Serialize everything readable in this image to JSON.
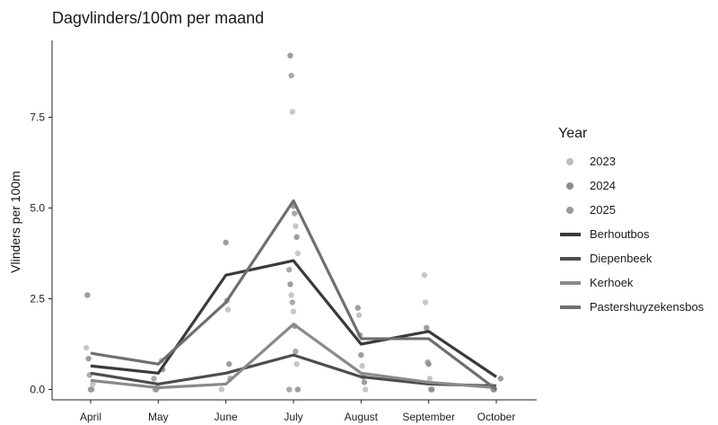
{
  "chart_data": {
    "type": "line",
    "title": "Dagvlinders/100m per maand",
    "xlabel": "",
    "ylabel": "Vlinders per 100m",
    "categories": [
      "April",
      "May",
      "June",
      "July",
      "August",
      "September",
      "October"
    ],
    "y_ticks": [
      "0.0",
      "2.5",
      "5.0",
      "7.5"
    ],
    "ylim": [
      0,
      9.5
    ],
    "grid": false,
    "legend_position": "right",
    "legend_title": "Year",
    "point_legend": [
      {
        "name": "2023",
        "color": "#bdbdbd"
      },
      {
        "name": "2024",
        "color": "#8c8c8c"
      },
      {
        "name": "2025",
        "color": "#9a9a9a"
      }
    ],
    "series": [
      {
        "name": "Berhoutbos",
        "color": "#3a3a3a",
        "values": [
          0.65,
          0.45,
          3.15,
          3.55,
          1.25,
          1.6,
          0.35
        ]
      },
      {
        "name": "Diepenbeek",
        "color": "#4d4d4d",
        "values": [
          0.45,
          0.15,
          0.45,
          0.95,
          0.35,
          0.15,
          0.1
        ]
      },
      {
        "name": "Kerhoek",
        "color": "#8a8a8a",
        "values": [
          0.25,
          0.05,
          0.15,
          1.8,
          0.45,
          0.2,
          0.05
        ]
      },
      {
        "name": "Pastershuyzekensbos",
        "color": "#6f6f6f",
        "values": [
          1.0,
          0.7,
          2.4,
          5.2,
          1.4,
          1.4,
          0.0
        ]
      }
    ],
    "points": [
      {
        "x": "April",
        "y": 1.15,
        "year": "2023"
      },
      {
        "x": "April",
        "y": 2.6,
        "year": "2024"
      },
      {
        "x": "April",
        "y": 0.85,
        "year": "2024"
      },
      {
        "x": "April",
        "y": 0.4,
        "year": "2025"
      },
      {
        "x": "April",
        "y": 0.0,
        "year": "2024"
      },
      {
        "x": "April",
        "y": 0.0,
        "year": "2025"
      },
      {
        "x": "April",
        "y": 0.15,
        "year": "2023"
      },
      {
        "x": "May",
        "y": 0.8,
        "year": "2023"
      },
      {
        "x": "May",
        "y": 0.55,
        "year": "2024"
      },
      {
        "x": "May",
        "y": 0.3,
        "year": "2025"
      },
      {
        "x": "May",
        "y": 0.0,
        "year": "2023"
      },
      {
        "x": "May",
        "y": 0.0,
        "year": "2024"
      },
      {
        "x": "May",
        "y": 0.05,
        "year": "2025"
      },
      {
        "x": "June",
        "y": 4.05,
        "year": "2024"
      },
      {
        "x": "June",
        "y": 2.45,
        "year": "2025"
      },
      {
        "x": "June",
        "y": 2.2,
        "year": "2023"
      },
      {
        "x": "June",
        "y": 0.7,
        "year": "2024"
      },
      {
        "x": "June",
        "y": 0.3,
        "year": "2025"
      },
      {
        "x": "June",
        "y": 0.0,
        "year": "2023"
      },
      {
        "x": "July",
        "y": 9.2,
        "year": "2024"
      },
      {
        "x": "July",
        "y": 8.65,
        "year": "2025"
      },
      {
        "x": "July",
        "y": 7.65,
        "year": "2023"
      },
      {
        "x": "July",
        "y": 5.05,
        "year": "2024"
      },
      {
        "x": "July",
        "y": 4.85,
        "year": "2025"
      },
      {
        "x": "July",
        "y": 4.5,
        "year": "2023"
      },
      {
        "x": "July",
        "y": 4.2,
        "year": "2024"
      },
      {
        "x": "July",
        "y": 3.75,
        "year": "2023"
      },
      {
        "x": "July",
        "y": 3.3,
        "year": "2025"
      },
      {
        "x": "July",
        "y": 2.9,
        "year": "2024"
      },
      {
        "x": "July",
        "y": 2.6,
        "year": "2023"
      },
      {
        "x": "July",
        "y": 2.4,
        "year": "2025"
      },
      {
        "x": "July",
        "y": 2.15,
        "year": "2023"
      },
      {
        "x": "July",
        "y": 1.75,
        "year": "2024"
      },
      {
        "x": "July",
        "y": 1.05,
        "year": "2025"
      },
      {
        "x": "July",
        "y": 0.7,
        "year": "2023"
      },
      {
        "x": "July",
        "y": 0.0,
        "year": "2024"
      },
      {
        "x": "July",
        "y": 0.0,
        "year": "2025"
      },
      {
        "x": "August",
        "y": 2.25,
        "year": "2024"
      },
      {
        "x": "August",
        "y": 2.05,
        "year": "2023"
      },
      {
        "x": "August",
        "y": 1.5,
        "year": "2025"
      },
      {
        "x": "August",
        "y": 0.95,
        "year": "2024"
      },
      {
        "x": "August",
        "y": 0.65,
        "year": "2023"
      },
      {
        "x": "August",
        "y": 0.35,
        "year": "2025"
      },
      {
        "x": "August",
        "y": 0.2,
        "year": "2024"
      },
      {
        "x": "August",
        "y": 0.0,
        "year": "2023"
      },
      {
        "x": "September",
        "y": 3.15,
        "year": "2023"
      },
      {
        "x": "September",
        "y": 2.4,
        "year": "2023"
      },
      {
        "x": "September",
        "y": 1.7,
        "year": "2024"
      },
      {
        "x": "September",
        "y": 0.75,
        "year": "2025"
      },
      {
        "x": "September",
        "y": 0.7,
        "year": "2024"
      },
      {
        "x": "September",
        "y": 0.3,
        "year": "2023"
      },
      {
        "x": "September",
        "y": 0.0,
        "year": "2025"
      },
      {
        "x": "September",
        "y": 0.0,
        "year": "2024"
      },
      {
        "x": "October",
        "y": 0.3,
        "year": "2024"
      },
      {
        "x": "October",
        "y": 0.1,
        "year": "2023"
      },
      {
        "x": "October",
        "y": 0.0,
        "year": "2025"
      },
      {
        "x": "October",
        "y": 0.0,
        "year": "2024"
      }
    ]
  }
}
